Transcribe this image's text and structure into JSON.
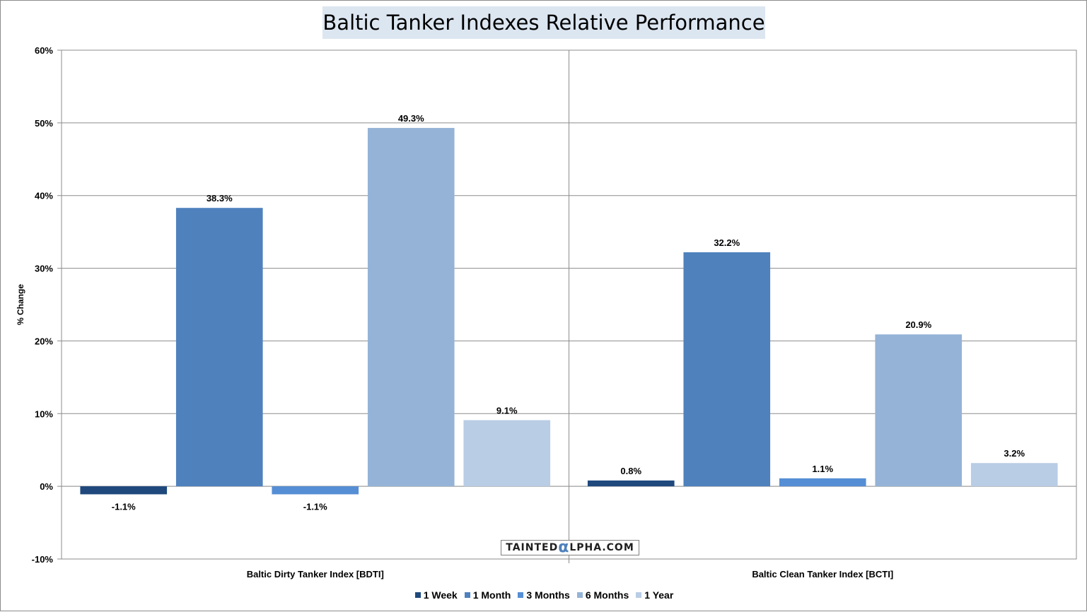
{
  "chart_data": {
    "type": "bar",
    "title": "Baltic Tanker Indexes Relative Performance",
    "ylabel": "% Change",
    "xlabel": "",
    "categories": [
      "Baltic Dirty Tanker Index [BDTI]",
      "Baltic Clean Tanker Index [BCTI]"
    ],
    "ylim": [
      -10,
      60
    ],
    "yticks": [
      -10,
      0,
      10,
      20,
      30,
      40,
      50,
      60
    ],
    "ytick_labels": [
      "-10%",
      "0%",
      "10%",
      "20%",
      "30%",
      "40%",
      "50%",
      "60%"
    ],
    "grid": true,
    "legend_position": "bottom",
    "series": [
      {
        "name": "1 Week",
        "values": [
          -1.1,
          0.8
        ],
        "labels": [
          "-1.1%",
          "0.8%"
        ],
        "color": "#1f497d"
      },
      {
        "name": "1 Month",
        "values": [
          38.3,
          32.2
        ],
        "labels": [
          "38.3%",
          "32.2%"
        ],
        "color": "#4f81bd"
      },
      {
        "name": "3 Months",
        "values": [
          -1.1,
          1.1
        ],
        "labels": [
          "-1.1%",
          "1.1%"
        ],
        "color": "#558ed5"
      },
      {
        "name": "6 Months",
        "values": [
          49.3,
          20.9
        ],
        "labels": [
          "49.3%",
          "20.9%"
        ],
        "color": "#95b3d7"
      },
      {
        "name": "1 Year",
        "values": [
          9.1,
          3.2
        ],
        "labels": [
          "9.1%",
          "3.2%"
        ],
        "color": "#b9cde5"
      }
    ]
  },
  "watermark": {
    "prefix": "TAINTED",
    "alpha": "α",
    "suffix": "LPHA.COM"
  }
}
